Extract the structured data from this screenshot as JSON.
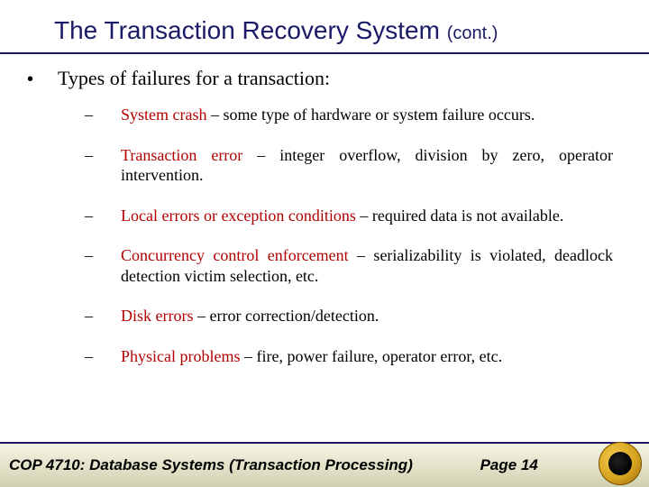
{
  "title": {
    "main": "The Transaction Recovery System ",
    "cont": "(cont.)"
  },
  "intro": "Types of failures for a transaction:",
  "items": [
    {
      "lead": "System crash",
      "rest": " – some type of hardware or system failure occurs."
    },
    {
      "lead": "Transaction error",
      "rest": " – integer overflow, division by zero, operator intervention."
    },
    {
      "lead": "Local errors or exception conditions",
      "rest": " – required data is not available."
    },
    {
      "lead": "Concurrency control enforcement",
      "rest": " – serializability is violated, deadlock detection victim selection, etc."
    },
    {
      "lead": "Disk errors",
      "rest": " – error correction/detection."
    },
    {
      "lead": "Physical problems",
      "rest": " – fire, power failure, operator error, etc."
    }
  ],
  "footer": {
    "course": "COP 4710: Database Systems  (Transaction Processing)",
    "page": "Page 14"
  },
  "colors": {
    "heading": "#1a1a66",
    "lead": "#b30000"
  }
}
